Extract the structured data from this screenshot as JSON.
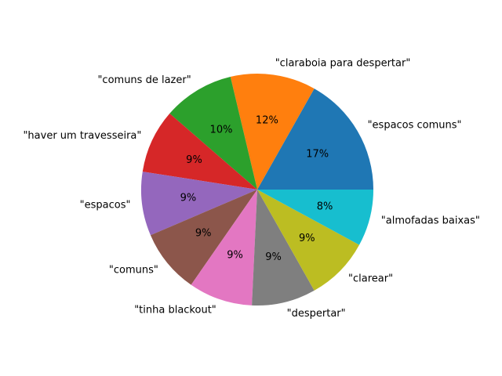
{
  "chart_data": {
    "type": "pie",
    "title": "",
    "start_angle_deg": 0,
    "direction": "counterclockwise",
    "slices": [
      {
        "label": "\"espacos comuns\"",
        "value": 17,
        "pct_label": "17%",
        "color": "#1f77b4"
      },
      {
        "label": "\"claraboia para despertar\"",
        "value": 12,
        "pct_label": "12%",
        "color": "#ff7f0e"
      },
      {
        "label": "\"comuns de lazer\"",
        "value": 10,
        "pct_label": "10%",
        "color": "#2ca02c"
      },
      {
        "label": "\"haver um travesseira\"",
        "value": 9,
        "pct_label": "9%",
        "color": "#d62728"
      },
      {
        "label": "\"espacos\"",
        "value": 9,
        "pct_label": "9%",
        "color": "#9467bd"
      },
      {
        "label": "\"comuns\"",
        "value": 9,
        "pct_label": "9%",
        "color": "#8c564b"
      },
      {
        "label": "\"tinha blackout\"",
        "value": 9,
        "pct_label": "9%",
        "color": "#e377c2"
      },
      {
        "label": "\"despertar\"",
        "value": 9,
        "pct_label": "9%",
        "color": "#7f7f7f"
      },
      {
        "label": "\"clarear\"",
        "value": 9,
        "pct_label": "9%",
        "color": "#bcbd22"
      },
      {
        "label": "\"almofadas baixas\"",
        "value": 8,
        "pct_label": "8%",
        "color": "#17becf"
      }
    ]
  }
}
